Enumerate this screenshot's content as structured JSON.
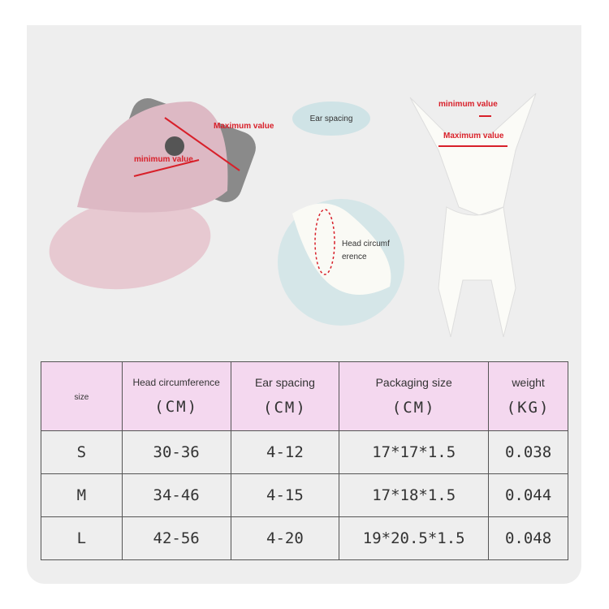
{
  "annotations": {
    "hat_max": "Maximum value",
    "hat_min": "minimum value",
    "ear_spacing": "Ear spacing",
    "head_circ": "Head circumf erence",
    "dog_min": "minimum value",
    "dog_max": "Maximum value"
  },
  "colors": {
    "panel": "#eeeeee",
    "header": "#f4d8ef",
    "annotation": "#d8202a",
    "pill": "#cfe3e6"
  },
  "table": {
    "headers": [
      {
        "label": "size",
        "unit": ""
      },
      {
        "label": "Head circumference",
        "unit": "(CM)"
      },
      {
        "label": "Ear spacing",
        "unit": "(CM)"
      },
      {
        "label": "Packaging size",
        "unit": "(CM)"
      },
      {
        "label": "weight",
        "unit": "(KG)"
      }
    ],
    "rows": [
      [
        "S",
        "30-36",
        "4-12",
        "17*17*1.5",
        "0.038"
      ],
      [
        "M",
        "34-46",
        "4-15",
        "17*18*1.5",
        "0.044"
      ],
      [
        "L",
        "42-56",
        "4-20",
        "19*20.5*1.5",
        "0.048"
      ]
    ]
  }
}
